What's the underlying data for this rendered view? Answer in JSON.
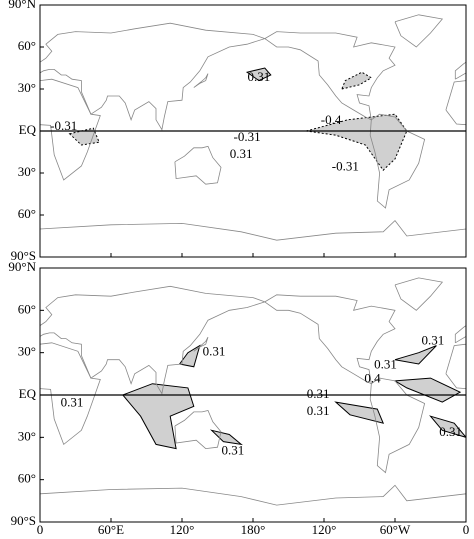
{
  "y_labels": [
    "90°N",
    "60°",
    "30°",
    "EQ",
    "30°",
    "60°",
    "90°S"
  ],
  "x_labels": [
    "0",
    "60°E",
    "120°",
    "180°",
    "120°",
    "60°W",
    "0"
  ],
  "panels": [
    {
      "contour_labels": [
        "0.31",
        "-0.31",
        "-0.4",
        "-0.31",
        "0.31",
        "-0.31"
      ]
    },
    {
      "contour_labels": [
        "0.31",
        "0.31",
        "0.31",
        "0.31",
        "0.31",
        "0.4",
        "0.31",
        "0.31",
        "0.31"
      ]
    }
  ]
}
